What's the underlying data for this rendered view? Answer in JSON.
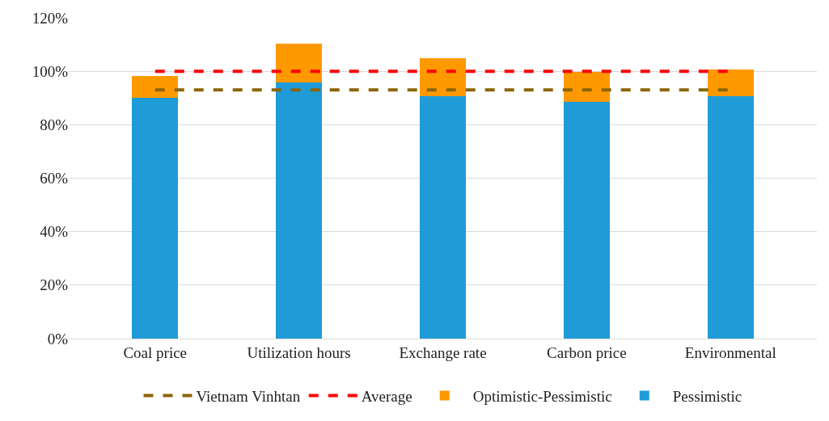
{
  "chart_data": {
    "type": "bar",
    "stacked": true,
    "categories": [
      "Coal price",
      "Utilization hours",
      "Exchange rate",
      "Carbon price",
      "Environmental"
    ],
    "series": [
      {
        "name": "Pessimistic",
        "color": "#1f9bd7",
        "values": [
          90.2,
          95.9,
          90.6,
          88.6,
          90.6
        ]
      },
      {
        "name": "Optimistic-Pessimistic",
        "color": "#ff9900",
        "values": [
          7.9,
          14.4,
          14.4,
          11.0,
          10.1
        ]
      },
      {
        "name": "Average",
        "type": "line",
        "line_style": "dashed",
        "marker": "none",
        "color": "#ff0000",
        "values": [
          100,
          100,
          100,
          100,
          100
        ]
      },
      {
        "name": "Vietnam Vinhtan",
        "type": "line",
        "line_style": "dashed",
        "marker": "none",
        "color": "#8b6508",
        "values": [
          93,
          93,
          93,
          93,
          93
        ]
      }
    ],
    "ylim": [
      0,
      120
    ],
    "yticks": [
      {
        "value": 0,
        "label": "0%"
      },
      {
        "value": 20,
        "label": "20%"
      },
      {
        "value": 40,
        "label": "40%"
      },
      {
        "value": 60,
        "label": "60%"
      },
      {
        "value": 80,
        "label": "80%"
      },
      {
        "value": 100,
        "label": "100%"
      },
      {
        "value": 120,
        "label": "120%"
      }
    ],
    "grid": "y",
    "legend": "bottom"
  }
}
